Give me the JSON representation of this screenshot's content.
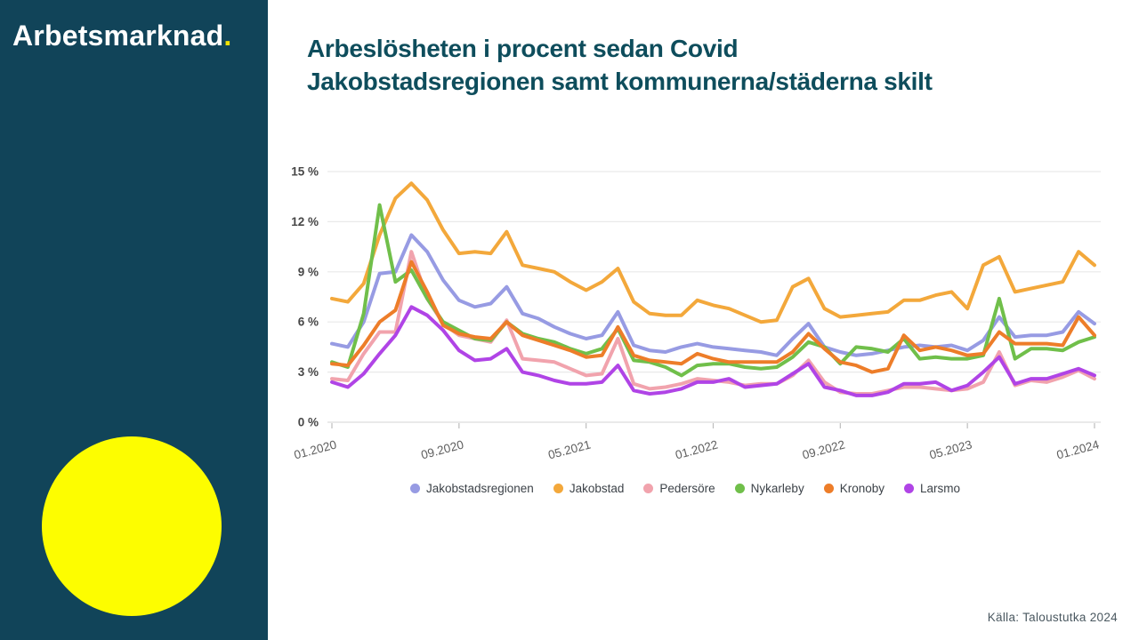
{
  "sidebar": {
    "logo_text": "Arbetsmarknad",
    "logo_dot": ".",
    "background_color": "#114459",
    "accent_yellow": "#fdfd00"
  },
  "header": {
    "title_line1": "Arbeslösheten i procent sedan Covid",
    "title_line2": "Jakobstadsregionen samt kommunerna/städerna skilt",
    "title_color": "#0e4d5c"
  },
  "source_note": "Källa: Taloustutka 2024",
  "chart_data": {
    "type": "line",
    "title": "",
    "xlabel": "",
    "ylabel": "",
    "ylim": [
      0,
      15
    ],
    "ytick_step": 3,
    "y_tick_labels": [
      "0 %",
      "3 %",
      "6 %",
      "9 %",
      "12 %",
      "15 %"
    ],
    "grid": true,
    "legend_position": "bottom",
    "n_points": 49,
    "x_tick_indices": [
      0,
      8,
      16,
      24,
      32,
      40,
      48
    ],
    "x_tick_labels": [
      "01.2020",
      "09.2020",
      "05.2021",
      "01.2022",
      "09.2022",
      "05.2023",
      "01.2024"
    ],
    "series": [
      {
        "name": "Jakobstadsregionen",
        "color": "#979be3",
        "values": [
          4.7,
          4.5,
          6.0,
          8.9,
          9.0,
          11.2,
          10.2,
          8.5,
          7.3,
          6.9,
          7.1,
          8.1,
          6.5,
          6.2,
          5.7,
          5.3,
          5.0,
          5.2,
          6.6,
          4.6,
          4.3,
          4.2,
          4.5,
          4.7,
          4.5,
          4.4,
          4.3,
          4.2,
          4.0,
          5.0,
          5.9,
          4.5,
          4.2,
          4.0,
          4.1,
          4.3,
          4.5,
          4.6,
          4.5,
          4.6,
          4.3,
          4.9,
          6.3,
          5.1,
          5.2,
          5.2,
          5.4,
          6.6,
          5.9
        ]
      },
      {
        "name": "Jakobstad",
        "color": "#f3a83b",
        "values": [
          7.4,
          7.2,
          8.3,
          11.2,
          13.4,
          14.3,
          13.3,
          11.5,
          10.1,
          10.2,
          10.1,
          11.4,
          9.4,
          9.2,
          9.0,
          8.4,
          7.9,
          8.4,
          9.2,
          7.2,
          6.5,
          6.4,
          6.4,
          7.3,
          7.0,
          6.8,
          6.4,
          6.0,
          6.1,
          8.1,
          8.6,
          6.8,
          6.3,
          6.4,
          6.5,
          6.6,
          7.3,
          7.3,
          7.6,
          7.8,
          6.8,
          9.4,
          9.9,
          7.8,
          8.0,
          8.2,
          8.4,
          10.2,
          9.4
        ]
      },
      {
        "name": "Pedersöre",
        "color": "#f1a3ad",
        "values": [
          2.6,
          2.5,
          4.1,
          5.4,
          5.4,
          10.2,
          7.4,
          5.9,
          5.2,
          5.0,
          4.8,
          6.1,
          3.8,
          3.7,
          3.6,
          3.2,
          2.8,
          2.9,
          5.0,
          2.3,
          2.0,
          2.1,
          2.3,
          2.6,
          2.5,
          2.4,
          2.2,
          2.3,
          2.3,
          2.8,
          3.7,
          2.4,
          1.8,
          1.7,
          1.7,
          1.9,
          2.1,
          2.1,
          2.0,
          1.9,
          2.0,
          2.4,
          4.2,
          2.2,
          2.5,
          2.4,
          2.7,
          3.1,
          2.6
        ]
      },
      {
        "name": "Nykarleby",
        "color": "#70bf4a",
        "values": [
          3.6,
          3.3,
          6.5,
          13.0,
          8.4,
          9.1,
          7.4,
          6.0,
          5.5,
          5.0,
          4.9,
          6.0,
          5.3,
          5.0,
          4.8,
          4.4,
          4.1,
          4.4,
          5.6,
          3.7,
          3.6,
          3.3,
          2.8,
          3.4,
          3.5,
          3.5,
          3.3,
          3.2,
          3.3,
          3.9,
          4.8,
          4.5,
          3.5,
          4.5,
          4.4,
          4.2,
          5.0,
          3.8,
          3.9,
          3.8,
          3.8,
          4.0,
          7.4,
          3.8,
          4.4,
          4.4,
          4.3,
          4.8,
          5.1
        ]
      },
      {
        "name": "Kronoby",
        "color": "#ed7d29",
        "values": [
          3.5,
          3.4,
          4.6,
          6.0,
          6.7,
          9.6,
          7.8,
          5.8,
          5.3,
          5.1,
          5.0,
          6.0,
          5.2,
          4.9,
          4.6,
          4.3,
          3.9,
          4.0,
          5.7,
          4.0,
          3.7,
          3.6,
          3.5,
          4.1,
          3.8,
          3.6,
          3.6,
          3.6,
          3.6,
          4.2,
          5.3,
          4.4,
          3.6,
          3.4,
          3.0,
          3.2,
          5.2,
          4.3,
          4.5,
          4.3,
          4.0,
          4.1,
          5.4,
          4.7,
          4.7,
          4.7,
          4.6,
          6.3,
          5.2
        ]
      },
      {
        "name": "Larsmo",
        "color": "#b044e6",
        "values": [
          2.4,
          2.1,
          2.9,
          4.1,
          5.2,
          6.9,
          6.4,
          5.5,
          4.3,
          3.7,
          3.8,
          4.4,
          3.0,
          2.8,
          2.5,
          2.3,
          2.3,
          2.4,
          3.4,
          1.9,
          1.7,
          1.8,
          2.0,
          2.4,
          2.4,
          2.6,
          2.1,
          2.2,
          2.3,
          2.9,
          3.5,
          2.1,
          1.9,
          1.6,
          1.6,
          1.8,
          2.3,
          2.3,
          2.4,
          1.9,
          2.2,
          3.0,
          3.9,
          2.3,
          2.6,
          2.6,
          2.9,
          3.2,
          2.8
        ]
      }
    ]
  }
}
